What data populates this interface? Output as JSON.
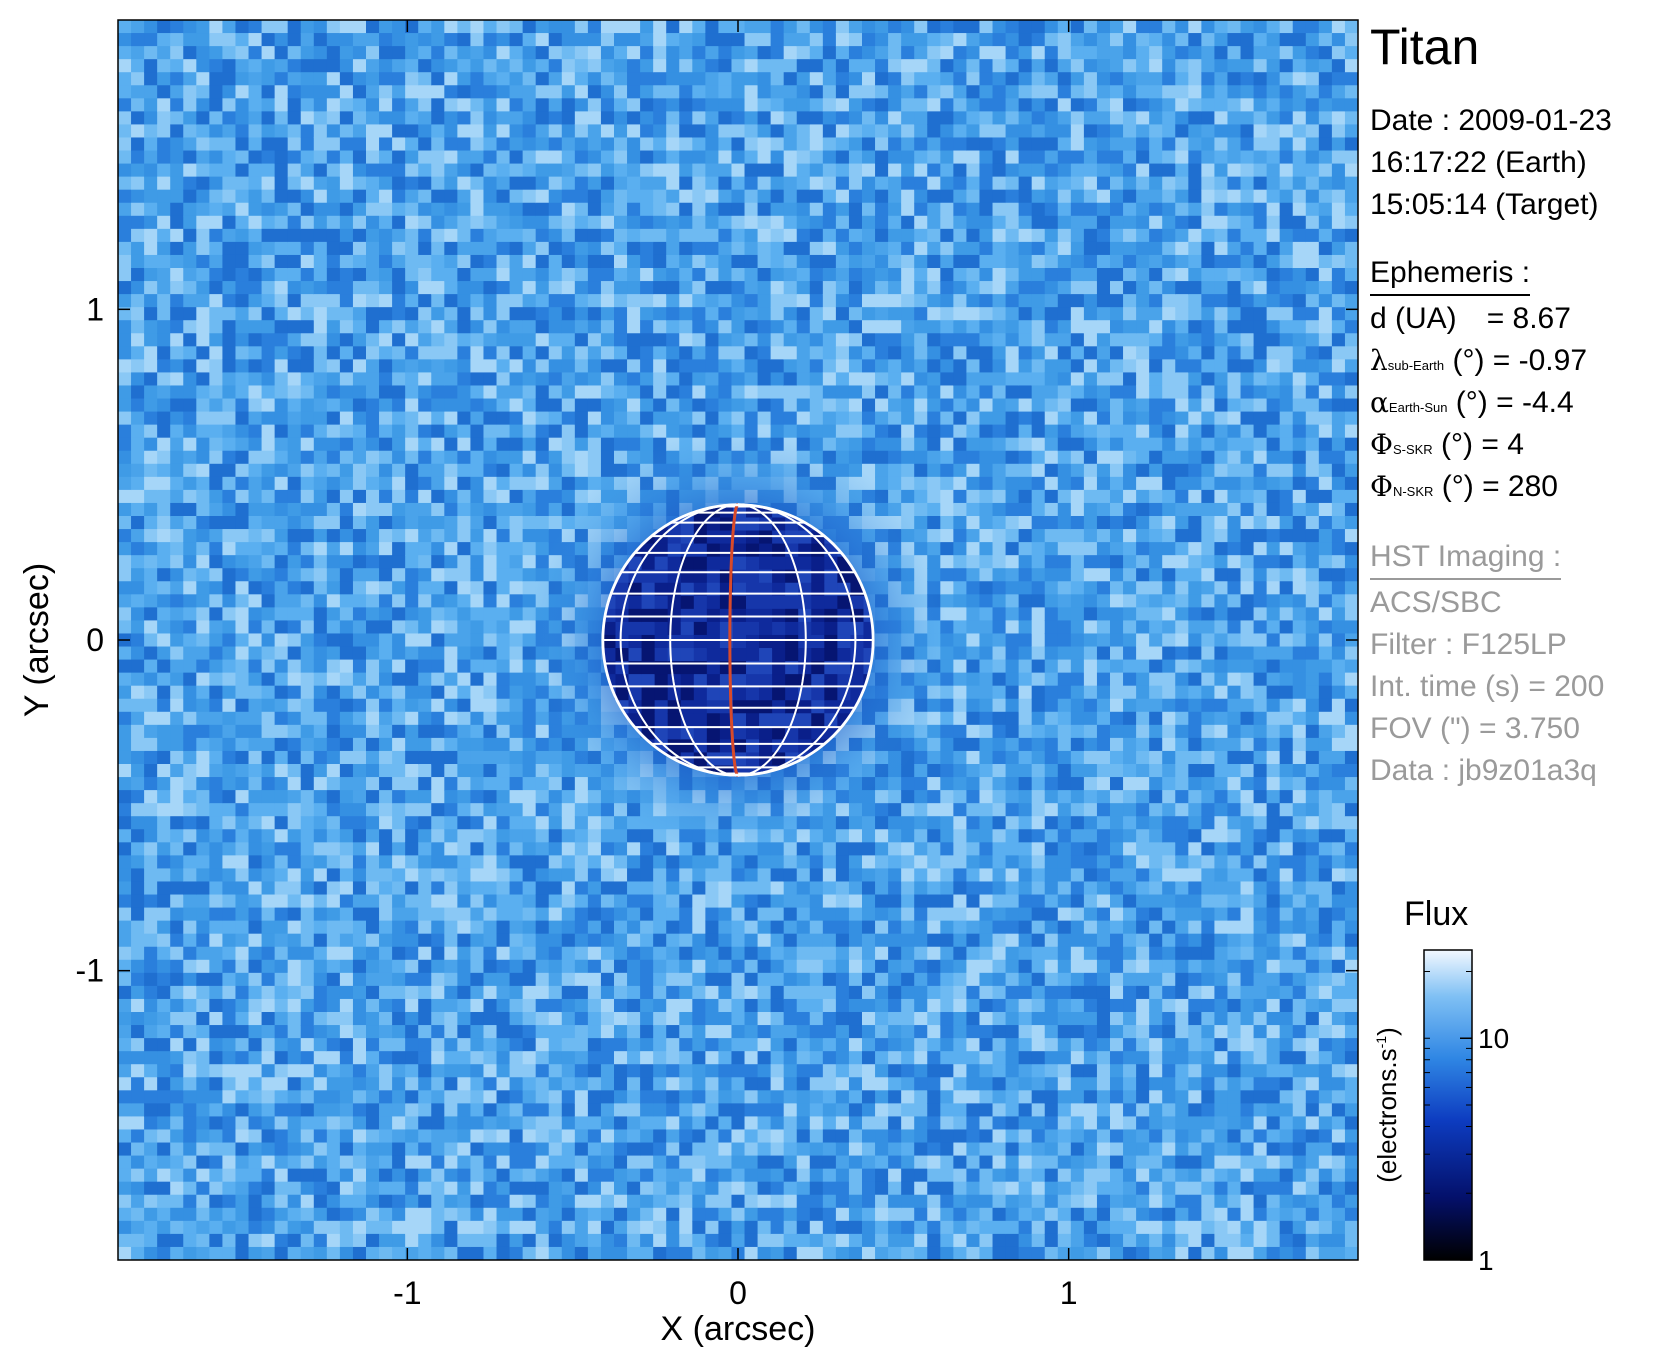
{
  "chart_data": {
    "type": "heatmap",
    "description_target": "Titan",
    "xlabel": "X (arcsec)",
    "ylabel": "Y (arcsec)",
    "xlim": [
      -1.875,
      1.875
    ],
    "ylim": [
      -1.875,
      1.875
    ],
    "x_ticks": [
      -1,
      0,
      1
    ],
    "y_ticks": [
      1,
      0,
      -1
    ],
    "x_tick_labels": [
      "-1",
      "0",
      "1"
    ],
    "y_tick_labels": [
      "1",
      "0",
      "-1"
    ],
    "disk": {
      "center": [
        0,
        0
      ],
      "radius_arcsec": 0.41,
      "central_meridian_color": "#d84a2a"
    },
    "colorbar": {
      "title": "Flux",
      "label": "(electrons.s",
      "label_sup": "-1",
      "label_close": ")",
      "scale": "log",
      "range": [
        1,
        25
      ],
      "tick_values": [
        10,
        1
      ],
      "tick_labels": [
        "10",
        "1"
      ]
    },
    "background_level": 13,
    "disk_level": 4
  },
  "panel": {
    "title": "Titan",
    "date_line": "Date : 2009-01-23",
    "earth_time": "16:17:22 (Earth)",
    "target_time": "15:05:14 (Target)",
    "ephemeris_header": "Ephemeris :",
    "d_label": "d (UA)",
    "d_value": "= 8.67",
    "lambda_symbol": "λ",
    "lambda_sub": "sub-Earth",
    "lambda_rest": " (°) = -0.97",
    "alpha_symbol": "α",
    "alpha_sub": "Earth-Sun",
    "alpha_rest": " (°) = -4.4",
    "phi_symbol": "Φ",
    "phi_s_sub": "S-SKR",
    "phi_s_rest": " (°)   = 4",
    "phi_n_sub": "N-SKR",
    "phi_n_rest": " (°)   = 280",
    "hst_header": "HST Imaging :",
    "instrument": "ACS/SBC",
    "filter": "Filter : F125LP",
    "int_time": "Int. time (s) = 200",
    "fov": "FOV (\") = 3.750",
    "data_id": "Data : jb9z01a3q"
  },
  "colors": {
    "background_blue": "#3f9be6",
    "disk_blue": "#0a1f8a",
    "grid_white": "#ffffff",
    "meridian_red": "#d84a2a",
    "gray_text": "#9a9a9a"
  }
}
